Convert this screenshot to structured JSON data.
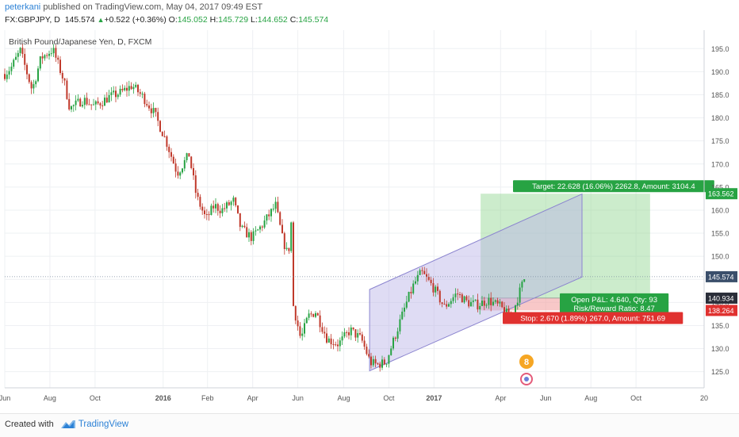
{
  "header": {
    "user": "peterkani",
    "published": " published on TradingView.com, May 04, 2017 09:49 EST",
    "symbol": "FX:GBPJPY, D",
    "price": "145.574",
    "change": "+0.522 (+0.36%)",
    "o_label": "O:",
    "o_value": "145.052",
    "h_label": "H:",
    "h_value": "145.729",
    "l_label": "L:",
    "l_value": "144.652",
    "c_label": "C:",
    "c_value": "145.574"
  },
  "footer": {
    "created_with": "Created with",
    "brand": "TradingView"
  },
  "colors": {
    "up": "#27a343",
    "down": "#c0392b",
    "channel": "#b7b2e6",
    "target": "#8fd48f",
    "stop": "#f3a3a3",
    "accent": "#2d82d6"
  },
  "chart_data": {
    "type": "candlestick",
    "title": "British Pound/Japanese Yen, D, FXCM",
    "ylim": [
      121.5,
      199
    ],
    "y_ticks": [
      125,
      130,
      135,
      140,
      145,
      150,
      155,
      160,
      165,
      170,
      175,
      180,
      185,
      190,
      195
    ],
    "x_ticks": [
      "Jun",
      "Aug",
      "Oct",
      "2016",
      "Feb",
      "Apr",
      "Jun",
      "Aug",
      "Oct",
      "2017",
      "Apr",
      "Jun",
      "Aug",
      "Oct",
      "20"
    ],
    "x_range": [
      "2015-06-01",
      "2018-01-01"
    ],
    "close_path": [
      [
        "2015-06-01",
        189.5
      ],
      [
        "2015-06-10",
        191
      ],
      [
        "2015-06-22",
        194.5
      ],
      [
        "2015-07-08",
        186
      ],
      [
        "2015-07-20",
        193
      ],
      [
        "2015-08-05",
        194.8
      ],
      [
        "2015-08-20",
        188
      ],
      [
        "2015-08-28",
        182
      ],
      [
        "2015-09-15",
        184
      ],
      [
        "2015-09-30",
        182.5
      ],
      [
        "2015-10-20",
        184.5
      ],
      [
        "2015-11-05",
        185.5
      ],
      [
        "2015-11-20",
        187
      ],
      [
        "2015-12-05",
        184.5
      ],
      [
        "2015-12-20",
        181
      ],
      [
        "2016-01-05",
        175
      ],
      [
        "2016-01-20",
        168
      ],
      [
        "2016-02-05",
        172
      ],
      [
        "2016-02-15",
        163
      ],
      [
        "2016-02-28",
        158
      ],
      [
        "2016-03-10",
        161
      ],
      [
        "2016-03-20",
        160
      ],
      [
        "2016-04-05",
        162
      ],
      [
        "2016-04-15",
        156
      ],
      [
        "2016-04-30",
        154
      ],
      [
        "2016-05-15",
        157
      ],
      [
        "2016-06-01",
        161
      ],
      [
        "2016-06-10",
        154
      ],
      [
        "2016-06-18",
        150
      ],
      [
        "2016-06-23",
        159
      ],
      [
        "2016-06-24",
        140
      ],
      [
        "2016-07-05",
        132
      ],
      [
        "2016-07-15",
        137
      ],
      [
        "2016-07-25",
        138
      ],
      [
        "2016-08-10",
        132
      ],
      [
        "2016-08-25",
        131
      ],
      [
        "2016-09-10",
        134
      ],
      [
        "2016-09-25",
        132
      ],
      [
        "2016-10-07",
        127
      ],
      [
        "2016-10-15",
        126.5
      ],
      [
        "2016-10-28",
        127
      ],
      [
        "2016-11-10",
        133
      ],
      [
        "2016-11-25",
        140
      ],
      [
        "2016-12-05",
        144
      ],
      [
        "2016-12-15",
        146.5
      ],
      [
        "2016-12-30",
        143.5
      ],
      [
        "2017-01-15",
        139
      ],
      [
        "2017-02-01",
        142
      ],
      [
        "2017-02-15",
        140
      ],
      [
        "2017-03-01",
        139.5
      ],
      [
        "2017-03-15",
        140.5
      ],
      [
        "2017-04-01",
        139
      ],
      [
        "2017-04-15",
        136.5
      ],
      [
        "2017-04-24",
        141
      ],
      [
        "2017-05-04",
        145.574
      ]
    ],
    "channel": {
      "lower_start": [
        "2016-10-06",
        125.2
      ],
      "lower_end": [
        "2017-07-20",
        145.5
      ],
      "upper_start": [
        "2016-10-06",
        142.8
      ],
      "upper_end": [
        "2017-07-20",
        163.5
      ]
    },
    "position": {
      "start": "2017-03-05",
      "end": "2017-10-20",
      "entry": 140.934,
      "target": 163.562,
      "stop": 138.264,
      "target_label": "Target: 22.628 (16.06%) 2262.8, Amount: 3104.4",
      "pnl_label": "Open P&L: 4.640, Qty: 93",
      "rr_label": "Risk/Reward Ratio: 8.47",
      "stop_label": "Stop: 2.670 (1.89%) 267.0, Amount: 751.69"
    },
    "price_labels": {
      "target": "163.562",
      "current": "145.574",
      "entry": "140.934",
      "stop": "138.264"
    }
  }
}
